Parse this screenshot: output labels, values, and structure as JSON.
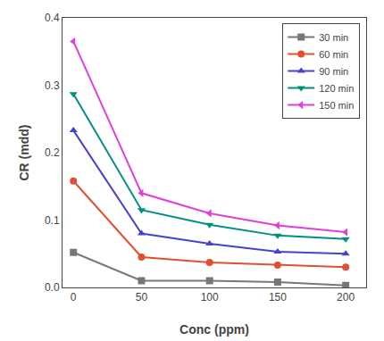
{
  "chart_data": {
    "type": "line",
    "x": [
      0,
      50,
      100,
      150,
      200
    ],
    "series": [
      {
        "name": "30 min",
        "color": "#777777",
        "marker": "square",
        "values": [
          0.052,
          0.01,
          0.01,
          0.008,
          0.003
        ]
      },
      {
        "name": "60 min",
        "color": "#e05030",
        "marker": "circle",
        "values": [
          0.158,
          0.045,
          0.037,
          0.033,
          0.03
        ]
      },
      {
        "name": "90 min",
        "color": "#4444cc",
        "marker": "triangle-up",
        "values": [
          0.233,
          0.08,
          0.065,
          0.053,
          0.05
        ]
      },
      {
        "name": "120 min",
        "color": "#009080",
        "marker": "triangle-down",
        "values": [
          0.287,
          0.115,
          0.093,
          0.077,
          0.072
        ]
      },
      {
        "name": "150 min",
        "color": "#dd40dd",
        "marker": "triangle-left",
        "values": [
          0.365,
          0.14,
          0.11,
          0.092,
          0.082
        ]
      }
    ],
    "xlabel": "Conc (ppm)",
    "ylabel": "CR (mdd)",
    "xlim": [
      -8,
      215
    ],
    "xticks": [
      0,
      50,
      100,
      150,
      200
    ],
    "ylim": [
      0,
      0.4
    ],
    "yticks": [
      {
        "value": 0,
        "label": "0.0"
      },
      0.1,
      0.2,
      0.3,
      0.4
    ],
    "grid": false,
    "legend": "upper right"
  }
}
